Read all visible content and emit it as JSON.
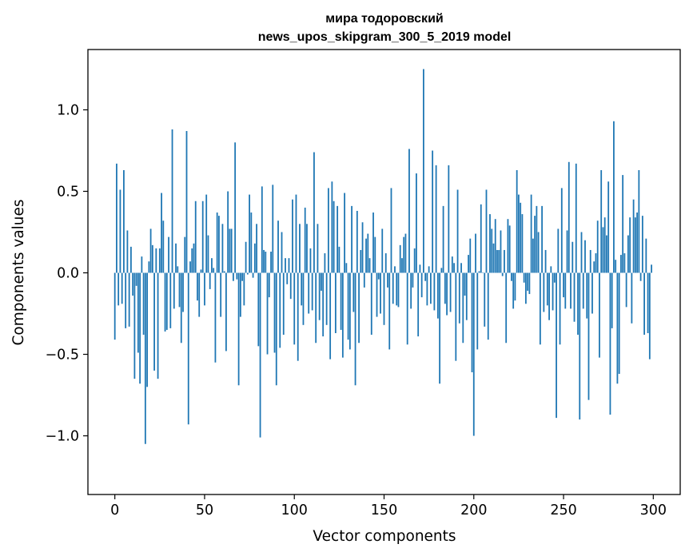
{
  "chart_data": {
    "type": "bar",
    "title": "мира тодоровский",
    "subtitle": "news_upos_skipgram_300_5_2019 model",
    "xlabel": "Vector components",
    "ylabel": "Components values",
    "xlim": [
      -15,
      315
    ],
    "ylim": [
      -1.36,
      1.37
    ],
    "xticks": [
      0,
      50,
      100,
      150,
      200,
      250,
      300
    ],
    "xtick_labels": [
      "0",
      "50",
      "100",
      "150",
      "200",
      "250",
      "300"
    ],
    "yticks": [
      -1.0,
      -0.5,
      0.0,
      0.5,
      1.0
    ],
    "ytick_labels": [
      "−1.0",
      "−0.5",
      "0.0",
      "0.5",
      "1.0"
    ],
    "grid": false,
    "bar_color": "#1f77b4",
    "series": [
      {
        "values": [
          -0.41,
          0.67,
          -0.2,
          0.51,
          -0.19,
          0.63,
          -0.34,
          0.26,
          -0.33,
          0.16,
          -0.14,
          -0.65,
          -0.08,
          -0.49,
          -0.68,
          0.1,
          -0.38,
          -1.05,
          -0.7,
          0.07,
          0.27,
          0.17,
          -0.6,
          0.15,
          -0.65,
          0.15,
          0.49,
          0.32,
          -0.36,
          -0.35,
          0.22,
          -0.34,
          0.88,
          -0.22,
          0.18,
          0.04,
          -0.21,
          -0.43,
          -0.24,
          0.22,
          0.87,
          -0.93,
          0.07,
          0.15,
          0.18,
          0.44,
          -0.17,
          -0.27,
          0.02,
          0.44,
          -0.2,
          0.48,
          0.23,
          -0.1,
          0.09,
          0.03,
          -0.55,
          0.37,
          0.35,
          -0.27,
          0.3,
          0.01,
          -0.48,
          0.5,
          0.27,
          0.27,
          -0.05,
          0.8,
          -0.04,
          -0.69,
          -0.27,
          -0.05,
          -0.2,
          0.19,
          -0.01,
          0.48,
          0.37,
          -0.03,
          0.18,
          0.3,
          -0.45,
          -1.01,
          0.53,
          0.14,
          0.13,
          -0.5,
          -0.15,
          0.13,
          0.54,
          -0.49,
          -0.69,
          0.32,
          -0.46,
          0.25,
          -0.38,
          0.09,
          -0.07,
          0.09,
          -0.16,
          0.45,
          -0.44,
          0.48,
          -0.54,
          0.3,
          -0.2,
          -0.32,
          0.4,
          0.3,
          -0.25,
          0.15,
          -0.23,
          0.74,
          -0.43,
          0.3,
          -0.29,
          -0.11,
          -0.39,
          0.12,
          -0.32,
          0.52,
          -0.53,
          0.56,
          0.44,
          -0.37,
          0.41,
          0.16,
          -0.35,
          -0.52,
          0.49,
          0.06,
          -0.41,
          -0.47,
          0.41,
          -0.24,
          -0.69,
          0.38,
          -0.43,
          0.14,
          0.31,
          -0.09,
          0.21,
          0.24,
          0.09,
          -0.38,
          0.37,
          0.22,
          -0.27,
          -0.04,
          -0.25,
          0.27,
          -0.32,
          0.12,
          -0.09,
          -0.47,
          0.52,
          -0.19,
          0.04,
          -0.2,
          -0.21,
          0.17,
          0.09,
          0.22,
          0.24,
          -0.44,
          0.76,
          -0.22,
          -0.09,
          0.15,
          0.61,
          -0.39,
          0.05,
          -0.15,
          1.25,
          -0.05,
          -0.2,
          0.04,
          -0.19,
          0.75,
          -0.23,
          0.66,
          -0.28,
          -0.68,
          0.03,
          0.41,
          -0.19,
          -0.26,
          0.66,
          -0.24,
          0.1,
          0.06,
          -0.54,
          0.51,
          -0.31,
          0.06,
          -0.43,
          -0.14,
          -0.29,
          0.11,
          0.21,
          -0.61,
          -1.0,
          0.24,
          -0.47,
          0.01,
          0.42,
          0.0,
          -0.33,
          0.51,
          -0.41,
          0.36,
          0.27,
          0.18,
          0.33,
          0.14,
          0.14,
          0.26,
          -0.02,
          0.14,
          -0.43,
          0.33,
          0.29,
          -0.05,
          -0.22,
          -0.17,
          0.63,
          0.48,
          0.43,
          0.36,
          -0.06,
          -0.19,
          -0.11,
          -0.13,
          0.48,
          0.21,
          0.35,
          0.41,
          0.25,
          -0.44,
          0.41,
          -0.24,
          0.14,
          -0.2,
          -0.29,
          0.04,
          -0.23,
          -0.06,
          -0.89,
          0.27,
          -0.44,
          0.52,
          -0.15,
          -0.22,
          0.26,
          0.68,
          -0.22,
          0.19,
          -0.3,
          0.67,
          -0.38,
          -0.9,
          0.25,
          -0.22,
          0.2,
          -0.28,
          -0.78,
          0.14,
          -0.25,
          0.07,
          0.12,
          0.32,
          -0.52,
          0.63,
          0.28,
          0.34,
          0.23,
          0.56,
          -0.87,
          -0.34,
          0.93,
          0.08,
          -0.68,
          -0.62,
          0.11,
          0.6,
          0.12,
          -0.21,
          0.23,
          0.34,
          -0.31,
          0.45,
          0.34,
          0.37,
          0.63,
          -0.05,
          0.35,
          -0.38,
          0.21,
          -0.37,
          -0.53,
          0.05
        ]
      }
    ]
  }
}
